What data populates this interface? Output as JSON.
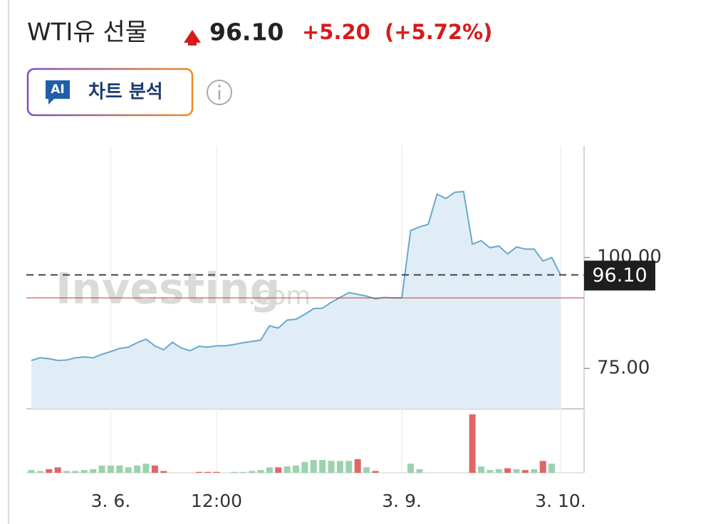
{
  "header": {
    "title": "WTI유 선물",
    "price": "96.10",
    "change": "+5.20",
    "change_percent": "(+5.72%)",
    "button_icon": "AI",
    "button_label": "차트 분석",
    "watermark": "Investing",
    "watermark_suffix": ".com"
  },
  "chart_data": {
    "type": "line",
    "color": "#6aa8cc",
    "fill": "#e1edf6",
    "categories": [
      null,
      null,
      null,
      null,
      null,
      null,
      null,
      null,
      null,
      "3. 6.",
      null,
      null,
      null,
      null,
      null,
      null,
      null,
      null,
      null,
      null,
      null,
      "12:00",
      null,
      null,
      null,
      null,
      null,
      null,
      null,
      null,
      null,
      null,
      null,
      null,
      null,
      null,
      null,
      null,
      null,
      null,
      null,
      null,
      "3. 9.",
      null,
      null,
      null,
      null,
      null,
      null,
      null,
      null,
      null,
      null,
      null,
      null,
      null,
      null,
      null,
      null,
      null,
      "3. 10."
    ],
    "values": [
      76.8,
      77.4,
      77.2,
      76.8,
      76.9,
      77.4,
      77.6,
      77.4,
      78.2,
      78.8,
      79.5,
      79.8,
      80.8,
      81.6,
      80.1,
      79.2,
      80.9,
      79.6,
      79.0,
      80.0,
      79.8,
      80.1,
      80.1,
      80.4,
      80.8,
      81.1,
      81.4,
      84.6,
      84.1,
      85.9,
      86.1,
      87.2,
      88.5,
      88.6,
      89.9,
      91.0,
      92.1,
      91.7,
      91.3,
      90.7,
      91.0,
      90.9,
      90.9,
      106.1,
      106.9,
      107.5,
      114.3,
      113.3,
      114.7,
      114.9,
      103.0,
      103.8,
      102.2,
      102.6,
      100.8,
      102.4,
      101.9,
      101.9,
      99.2,
      100.0,
      96.1
    ],
    "ylim": [
      65.9,
      125.2
    ],
    "yticks": [
      {
        "value": 75,
        "label": "75.00"
      },
      {
        "value": 100,
        "label": "100.00"
      }
    ],
    "reference_line": 90.9,
    "reference_color": "#c0392b",
    "volume": {
      "ylim": [
        0,
        70
      ],
      "values": [
        3,
        2,
        4,
        6,
        2,
        2,
        3,
        4,
        8,
        8,
        8,
        6,
        8,
        10,
        8,
        2,
        0,
        0,
        0,
        1,
        1,
        1,
        0,
        1,
        1,
        2,
        3,
        6,
        6,
        7,
        8,
        12,
        14,
        14,
        13,
        13,
        13,
        15,
        6,
        2,
        0,
        0,
        0,
        10,
        4,
        0,
        0,
        0,
        0,
        0,
        64,
        7,
        3,
        4,
        5,
        4,
        3,
        4,
        13,
        10,
        0
      ],
      "colors": [
        "#9ad3ae",
        "#9ad3ae",
        "#e06666",
        "#e06666",
        "#9ad3ae",
        "#9ad3ae",
        "#9ad3ae",
        "#9ad3ae",
        "#9ad3ae",
        "#9ad3ae",
        "#9ad3ae",
        "#9ad3ae",
        "#9ad3ae",
        "#9ad3ae",
        "#e06666",
        "#e06666",
        "#9ad3ae",
        "#9ad3ae",
        "#9ad3ae",
        "#e06666",
        "#e06666",
        "#e06666",
        "#9ad3ae",
        "#9ad3ae",
        "#9ad3ae",
        "#9ad3ae",
        "#9ad3ae",
        "#9ad3ae",
        "#e06666",
        "#9ad3ae",
        "#9ad3ae",
        "#9ad3ae",
        "#9ad3ae",
        "#9ad3ae",
        "#9ad3ae",
        "#9ad3ae",
        "#9ad3ae",
        "#e06666",
        "#9ad3ae",
        "#e06666",
        "#9ad3ae",
        "#9ad3ae",
        "#9ad3ae",
        "#9ad3ae",
        "#9ad3ae",
        "#9ad3ae",
        "#9ad3ae",
        "#9ad3ae",
        "#9ad3ae",
        "#9ad3ae",
        "#e06666",
        "#9ad3ae",
        "#9ad3ae",
        "#9ad3ae",
        "#e06666",
        "#9ad3ae",
        "#e06666",
        "#9ad3ae",
        "#e06666",
        "#9ad3ae",
        "#9ad3ae"
      ]
    },
    "grid": true
  }
}
